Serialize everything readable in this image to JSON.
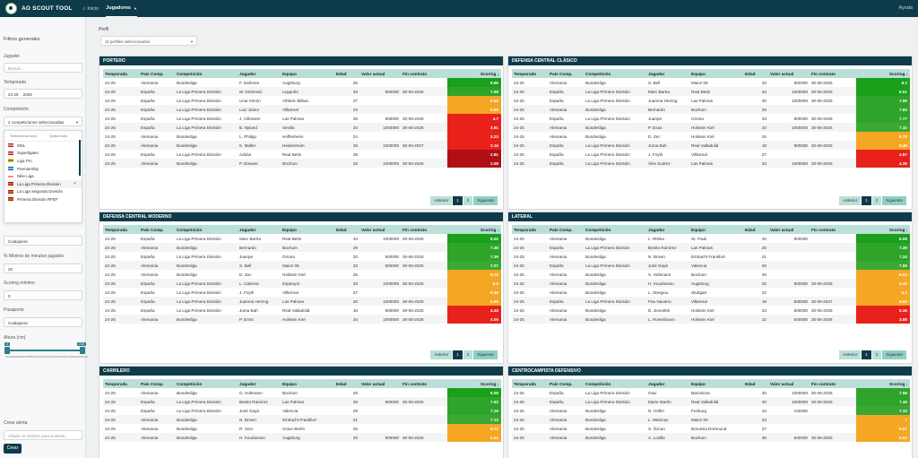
{
  "app": {
    "title": "AO SCOUT TOOL",
    "help": "Ayuda"
  },
  "nav": {
    "home": "Inicio",
    "players": "Jugadores"
  },
  "sidebar": {
    "title": "Filtros generales",
    "player_label": "Jugador",
    "player_placeholder": "Buscar...",
    "season_label": "Temporada",
    "season_value": "24-25",
    "season_value2": "2025",
    "competition_label": "Competición",
    "competition_value": "2 competiciones seleccionadas",
    "select_all": "Seleccionar todo",
    "clear_all": "Quitar todo",
    "competitions": [
      {
        "name": "MSL",
        "checked": false,
        "flag": [
          "#b22234",
          "#ffffff"
        ]
      },
      {
        "name": "Superligaen",
        "checked": false,
        "flag": [
          "#c8102e",
          "#ffffff"
        ]
      },
      {
        "name": "Liga Pro",
        "checked": false,
        "flag": [
          "#ffd100",
          "#0033a0"
        ]
      },
      {
        "name": "Premiership",
        "checked": false,
        "flag": [
          "#0065bd",
          "#ffffff"
        ]
      },
      {
        "name": "Nike Liga",
        "checked": false,
        "flag": [
          "#ffffff",
          "#dc143c"
        ]
      },
      {
        "name": "La Liga Primera División",
        "checked": true,
        "flag": [
          "#aa151b",
          "#f1bf00"
        ]
      },
      {
        "name": "La Liga Segunda División",
        "checked": false,
        "flag": [
          "#aa151b",
          "#f1bf00"
        ]
      },
      {
        "name": "Primera División RFEF",
        "checked": false,
        "flag": [
          "#aa151b",
          "#f1bf00"
        ]
      }
    ],
    "position_value": "Cualquiera",
    "minutes_label": "% Mínimo de minutos jugados",
    "minutes_value": "20",
    "scoring_label": "Scoring mínimo",
    "scoring_value": "0",
    "passport_label": "Pasaporte",
    "passport_value": "Cualquiera",
    "height_label": "Altura (cm)",
    "height_min": "0",
    "height_max": "210",
    "height_range": [
      0,
      210
    ],
    "height_min_fraction": 0.0,
    "height_max_fraction": 1.0,
    "height_ticks": [
      "0",
      "10",
      "20",
      "30",
      "40",
      "50",
      "60",
      "70",
      "80",
      "90",
      "100",
      "110",
      "120",
      "130",
      "140",
      "150",
      "160",
      "170",
      "180",
      "190",
      "200",
      "210"
    ],
    "alert_label": "Crear alerta",
    "alert_placeholder": "Añade un nombre para la alerta...",
    "create_button": "Crear"
  },
  "main": {
    "profile_label": "Perfil",
    "profile_value": "11 perfiles seleccionados"
  },
  "table_headers": [
    "Temporada",
    "País Comp.",
    "Competición",
    "Jugador",
    "Equipo",
    "Edad",
    "Valor actual",
    "Fin contrato",
    "Scoring"
  ],
  "pager": {
    "prev": "Anterior",
    "p1": "1",
    "p2": "2",
    "next": "Siguiente"
  },
  "panels": [
    {
      "title": "PORTERO",
      "rows": [
        [
          "24-25",
          "Alemania",
          "Bundesliga",
          "F. Dahmen",
          "Augsburg",
          "26",
          "",
          "",
          "8.95",
          "#1aa01a"
        ],
        [
          "24-25",
          "España",
          "La Liga Primera División",
          "M. Dmitrović",
          "Leganés",
          "33",
          "800000",
          "30-06-2025",
          "7.98",
          "#2ea52a"
        ],
        [
          "24-25",
          "España",
          "La Liga Primera División",
          "Unai Simón",
          "Athletic Bilbao",
          "27",
          "",
          "",
          "6.55",
          "#f5a623"
        ],
        [
          "24-25",
          "España",
          "La Liga Primera División",
          "Luiz Júnior",
          "Villarreal",
          "24",
          "",
          "",
          "5.69",
          "#f5a623"
        ],
        [
          "24-25",
          "España",
          "La Liga Primera División",
          "J. Cillessen",
          "Las Palmas",
          "35",
          "900000",
          "30-06-2026",
          "4.7",
          "#e8221b"
        ],
        [
          "24-25",
          "España",
          "La Liga Primera División",
          "B. Nyland",
          "Sevilla",
          "34",
          "1000000",
          "30-06-2026",
          "3.81",
          "#e8221b"
        ],
        [
          "24-25",
          "Alemania",
          "Bundesliga",
          "L. Philipp",
          "Hoffenheim",
          "24",
          "",
          "",
          "3.23",
          "#e8221b"
        ],
        [
          "24-25",
          "Alemania",
          "Bundesliga",
          "K. Müller",
          "Heidenheim",
          "36",
          "1000000",
          "30-06-2027",
          "3.16",
          "#e8221b"
        ],
        [
          "24-25",
          "España",
          "La Liga Primera División",
          "Adrián",
          "Real Betis",
          "38",
          "",
          "",
          "2.81",
          "#b01015"
        ],
        [
          "24-25",
          "Alemania",
          "Bundesliga",
          "P. Drewes",
          "Bochum",
          "32",
          "1000000",
          "30-06-2026",
          "2.58",
          "#b01015"
        ]
      ]
    },
    {
      "title": "DEFENSA CENTRAL CLÁSICO",
      "rows": [
        [
          "24-25",
          "Alemania",
          "Bundesliga",
          "S. Bell",
          "Mainz 05",
          "33",
          "800000",
          "30-06-2025",
          "8.2",
          "#1aa01a"
        ],
        [
          "24-25",
          "España",
          "La Liga Primera División",
          "Marc Bartra",
          "Real Betis",
          "34",
          "1000000",
          "30-06-2025",
          "8.01",
          "#1aa01a"
        ],
        [
          "24-25",
          "España",
          "La Liga Primera División",
          "Juanma Herzog",
          "Las Palmas",
          "20",
          "1000000",
          "30-06-2025",
          "7.95",
          "#2ea52a"
        ],
        [
          "24-25",
          "Alemania",
          "Bundesliga",
          "Bernardo",
          "Bochum",
          "29",
          "",
          "",
          "7.84",
          "#2ea52a"
        ],
        [
          "24-25",
          "España",
          "La Liga Primera División",
          "Juanpe",
          "Girona",
          "33",
          "900000",
          "30-06-2025",
          "7.77",
          "#2ea52a"
        ],
        [
          "24-25",
          "Alemania",
          "Bundesliga",
          "P. Dzas",
          "Holstein Kiel",
          "34",
          "1000000",
          "30-06-2025",
          "7.32",
          "#3aa832"
        ],
        [
          "24-25",
          "Alemania",
          "Bundesliga",
          "D. Zec",
          "Holstein Kiel",
          "25",
          "",
          "",
          "6.79",
          "#f5a623"
        ],
        [
          "24-25",
          "España",
          "La Liga Primera División",
          "Juma Bah",
          "Real Valladolid",
          "18",
          "900000",
          "30-06-2025",
          "6.35",
          "#f5a623"
        ],
        [
          "24-25",
          "España",
          "La Liga Primera División",
          "J. Foyth",
          "Villarreal",
          "27",
          "",
          "",
          "4.87",
          "#e8221b"
        ],
        [
          "24-25",
          "España",
          "La Liga Primera División",
          "Álex Suárez",
          "Las Palmas",
          "33",
          "1000000",
          "30-06-2025",
          "4.36",
          "#e8221b"
        ]
      ]
    },
    {
      "title": "DEFENSA CENTRAL MODERNO",
      "rows": [
        [
          "24-25",
          "España",
          "La Liga Primera División",
          "Marc Bartra",
          "Real Betis",
          "34",
          "1000000",
          "30-06-2025",
          "8.02",
          "#1aa01a"
        ],
        [
          "24-25",
          "Alemania",
          "Bundesliga",
          "Bernardo",
          "Bochum",
          "29",
          "",
          "",
          "7.38",
          "#2ea52a"
        ],
        [
          "24-25",
          "España",
          "La Liga Primera División",
          "Juanpe",
          "Girona",
          "33",
          "900000",
          "30-06-2025",
          "7.36",
          "#2ea52a"
        ],
        [
          "24-25",
          "Alemania",
          "Bundesliga",
          "S. Bell",
          "Mainz 05",
          "33",
          "800000",
          "30-06-2025",
          "7.07",
          "#3aa832"
        ],
        [
          "24-25",
          "Alemania",
          "Bundesliga",
          "D. Zec",
          "Holstein Kiel",
          "25",
          "",
          "",
          "6.76",
          "#f5a623"
        ],
        [
          "24-25",
          "España",
          "La Liga Primera División",
          "L. Cabrera",
          "Espanyol",
          "33",
          "1000000",
          "30-06-2025",
          "6.6",
          "#f5a623"
        ],
        [
          "24-25",
          "España",
          "La Liga Primera División",
          "J. Foyth",
          "Villarreal",
          "27",
          "",
          "",
          "6.36",
          "#f5a623"
        ],
        [
          "24-25",
          "España",
          "La Liga Primera División",
          "Juanma Herzog",
          "Las Palmas",
          "20",
          "1000000",
          "30-06-2025",
          "5.69",
          "#f5a623"
        ],
        [
          "24-25",
          "España",
          "La Liga Primera División",
          "Juma Bah",
          "Real Valladolid",
          "18",
          "900000",
          "30-06-2025",
          "4.48",
          "#e8221b"
        ],
        [
          "24-25",
          "Alemania",
          "Bundesliga",
          "P. Ernst",
          "Holstein Kiel",
          "34",
          "1000000",
          "30-06-2026",
          "4.06",
          "#e8221b"
        ]
      ]
    },
    {
      "title": "LATERAL",
      "rows": [
        [
          "24-25",
          "Alemania",
          "Bundesliga",
          "L. Ritzka",
          "St. Pauli",
          "26",
          "900000",
          "",
          "8.06",
          "#1aa01a"
        ],
        [
          "24-25",
          "España",
          "La Liga Primera División",
          "Benito Ramírez",
          "Las Palmas",
          "25",
          "",
          "",
          "7.39",
          "#2ea52a"
        ],
        [
          "24-25",
          "Alemania",
          "Bundesliga",
          "N. Brown",
          "Eintracht Frankfurt",
          "21",
          "",
          "",
          "7.24",
          "#2ea52a"
        ],
        [
          "24-25",
          "España",
          "La Liga Primera División",
          "José Gayà",
          "Valencia",
          "29",
          "",
          "",
          "7.06",
          "#3aa832"
        ],
        [
          "24-25",
          "Alemania",
          "Bundesliga",
          "S. Holtmann",
          "Bochum",
          "29",
          "",
          "",
          "6.83",
          "#f5a623"
        ],
        [
          "24-25",
          "Alemania",
          "Bundesliga",
          "H. Koudossou",
          "Augsburg",
          "25",
          "900000",
          "30-06-2026",
          "6.49",
          "#f5a623"
        ],
        [
          "24-25",
          "Alemania",
          "Bundesliga",
          "L. Stergiou",
          "Stuttgart",
          "22",
          "",
          "",
          "6.2",
          "#f5a623"
        ],
        [
          "24-25",
          "España",
          "La Liga Primera División",
          "Pau Navarro",
          "Villarreal",
          "19",
          "500000",
          "30-06-2027",
          "5.59",
          "#f5a623"
        ],
        [
          "24-25",
          "Alemania",
          "Bundesliga",
          "D. Jevonfek",
          "Holstein Kiel",
          "23",
          "500000",
          "30-06-2026",
          "5.36",
          "#e8221b"
        ],
        [
          "24-25",
          "Alemania",
          "Bundesliga",
          "L. Rosenboom",
          "Holstein Kiel",
          "22",
          "500000",
          "30-06-2026",
          "3.88",
          "#e8221b"
        ]
      ]
    },
    {
      "title": "CARRILERO",
      "rows": [
        [
          "24-25",
          "Alemania",
          "Bundesliga",
          "G. Holtmann",
          "Bochum",
          "29",
          "",
          "",
          "8.09",
          "#1aa01a"
        ],
        [
          "24-25",
          "España",
          "La Liga Primera División",
          "Benito Ramírez",
          "Las Palmas",
          "29",
          "900000",
          "30-06-2025",
          "7.62",
          "#2ea52a"
        ],
        [
          "24-25",
          "España",
          "La Liga Primera División",
          "José Gayà",
          "Valencia",
          "29",
          "",
          "",
          "7.16",
          "#2ea52a"
        ],
        [
          "24-25",
          "Alemania",
          "Bundesliga",
          "N. Brown",
          "Eintracht Frankfurt",
          "21",
          "",
          "",
          "7.13",
          "#3aa832"
        ],
        [
          "24-25",
          "Alemania",
          "Bundesliga",
          "R. Sion",
          "Union Berlin",
          "28",
          "",
          "",
          "6.72",
          "#f5a623"
        ],
        [
          "24-25",
          "Alemania",
          "Bundesliga",
          "H. Koudossou",
          "Augsburg",
          "25",
          "900000",
          "30-06-2026",
          "5.94",
          "#f5a623"
        ]
      ]
    },
    {
      "title": "CENTROCAMPISTA DEFENSIVO",
      "rows": [
        [
          "24-25",
          "España",
          "La Liga Primera División",
          "Gavi",
          "Barcelona",
          "20",
          "1000000",
          "30-06-2025",
          "7.58",
          "#2ea52a"
        ],
        [
          "24-25",
          "España",
          "La Liga Primera División",
          "Mario Martín",
          "Real Valladolid",
          "20",
          "1000000",
          "30-06-2025",
          "7.46",
          "#2ea52a"
        ],
        [
          "24-25",
          "Alemania",
          "Bundesliga",
          "N. Höfler",
          "Freiburg",
          "34",
          "100000",
          "",
          "7.33",
          "#3aa832"
        ],
        [
          "24-25",
          "Alemania",
          "Bundesliga",
          "L. Maloney",
          "Mainz 05",
          "23",
          "",
          "",
          "7",
          "#f5a623"
        ],
        [
          "24-25",
          "Alemania",
          "Bundesliga",
          "S. Özcan",
          "Borussia Dortmund",
          "27",
          "",
          "",
          "6.57",
          "#f5a623"
        ],
        [
          "24-25",
          "Alemania",
          "Bundesliga",
          "A. Losilla",
          "Bochum",
          "38",
          "500000",
          "30-06-2025",
          "6.52",
          "#f5a623"
        ]
      ]
    }
  ]
}
